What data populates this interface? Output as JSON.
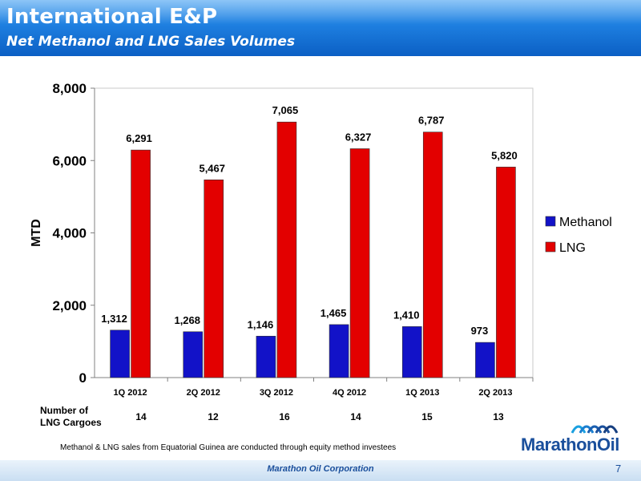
{
  "header": {
    "title": "International E&P",
    "subtitle": "Net Methanol and LNG Sales Volumes"
  },
  "chart_data": {
    "type": "bar",
    "title": "",
    "xlabel": "",
    "ylabel": "MTD",
    "ylim": [
      0,
      8000
    ],
    "yticks": [
      "0",
      "2,000",
      "4,000",
      "6,000",
      "8,000"
    ],
    "categories": [
      "1Q 2012",
      "2Q 2012",
      "3Q 2012",
      "4Q 2012",
      "1Q 2013",
      "2Q 2013"
    ],
    "series": [
      {
        "name": "Methanol",
        "color": "#1212c8",
        "values": [
          1312,
          1268,
          1146,
          1465,
          1410,
          973
        ],
        "labels": [
          "1,312",
          "1,268",
          "1,146",
          "1,465",
          "1,410",
          "973"
        ]
      },
      {
        "name": "LNG",
        "color": "#e30000",
        "values": [
          6291,
          5467,
          7065,
          6327,
          6787,
          5820
        ],
        "labels": [
          "6,291",
          "5,467",
          "7,065",
          "6,327",
          "6,787",
          "5,820"
        ]
      }
    ],
    "legend_position": "right",
    "grid": false
  },
  "cargoes": {
    "label_line1": "Number of",
    "label_line2": "LNG Cargoes",
    "values": [
      "14",
      "12",
      "16",
      "14",
      "15",
      "13"
    ]
  },
  "footnote": "Methanol & LNG sales from Equatorial Guinea are conducted through equity method investees",
  "logo": {
    "text": "MarathonOil"
  },
  "footer": {
    "company": "Marathon Oil Corporation",
    "page": "7"
  }
}
